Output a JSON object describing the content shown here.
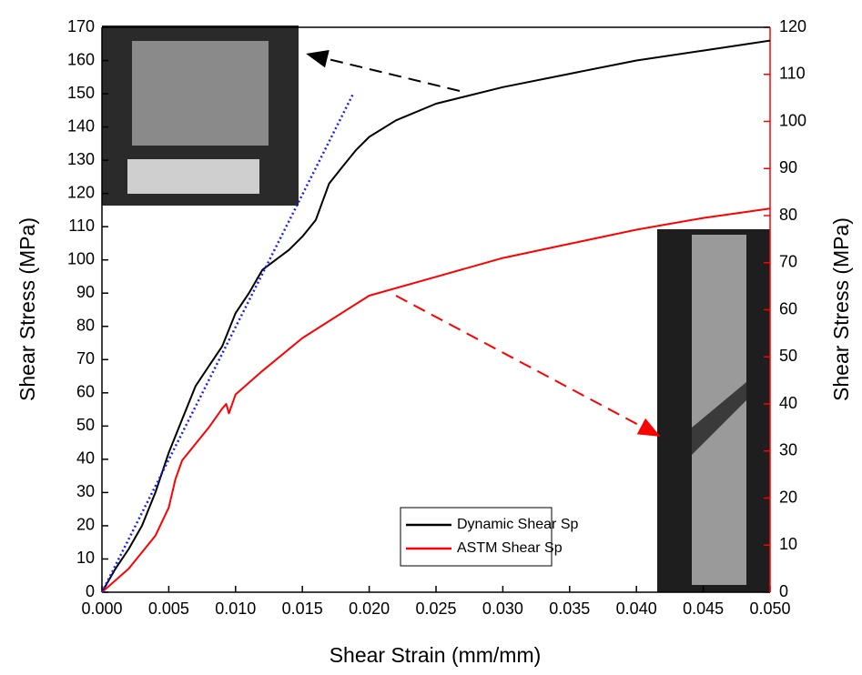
{
  "chart_data": {
    "type": "line",
    "x_label": "Shear Strain (mm/mm)",
    "y_label": "Shear Stress (MPa)",
    "y2_label": "Shear Stress (MPa)",
    "xlim": [
      0,
      0.05
    ],
    "xticks": [
      {
        "value": 0,
        "label": "0.000"
      },
      {
        "value": 0.005,
        "label": "0.005"
      },
      {
        "value": 0.01,
        "label": "0.010"
      },
      {
        "value": 0.015,
        "label": "0.015"
      },
      {
        "value": 0.02,
        "label": "0.020"
      },
      {
        "value": 0.025,
        "label": "0.025"
      },
      {
        "value": 0.03,
        "label": "0.030"
      },
      {
        "value": 0.035,
        "label": "0.035"
      },
      {
        "value": 0.04,
        "label": "0.040"
      },
      {
        "value": 0.045,
        "label": "0.045"
      },
      {
        "value": 0.05,
        "label": "0.050"
      }
    ],
    "ylim": [
      0,
      170
    ],
    "yticks": [
      0,
      10,
      20,
      30,
      40,
      50,
      60,
      70,
      80,
      90,
      100,
      110,
      120,
      130,
      140,
      150,
      160,
      170
    ],
    "y2lim": [
      0,
      120
    ],
    "y2ticks": [
      0,
      10,
      20,
      30,
      40,
      50,
      60,
      70,
      80,
      90,
      100,
      110,
      120
    ],
    "y2_color": "#ff0000",
    "legend": "bottom-right",
    "series": [
      {
        "name": "Dynamic Shear Sp",
        "color": "#000000",
        "axis": "y",
        "x": [
          0,
          0.001,
          0.002,
          0.003,
          0.004,
          0.005,
          0.006,
          0.007,
          0.008,
          0.009,
          0.01,
          0.011,
          0.012,
          0.013,
          0.014,
          0.015,
          0.016,
          0.017,
          0.018,
          0.019,
          0.02,
          0.022,
          0.025,
          0.03,
          0.035,
          0.04,
          0.045,
          0.05
        ],
        "values": [
          0,
          7,
          13,
          20,
          30,
          42,
          52,
          62,
          68,
          74,
          84,
          90,
          97,
          100,
          103,
          107,
          112,
          123,
          128,
          133,
          137,
          142,
          147,
          152,
          156,
          160,
          163,
          166
        ]
      },
      {
        "name": "ASTM Shear Sp",
        "color": "#ff0000",
        "axis": "y2",
        "x": [
          0,
          0.002,
          0.004,
          0.005,
          0.0055,
          0.006,
          0.008,
          0.009,
          0.0093,
          0.0095,
          0.01,
          0.012,
          0.015,
          0.02,
          0.025,
          0.03,
          0.035,
          0.04,
          0.045,
          0.05
        ],
        "values": [
          0,
          5,
          12,
          18,
          24,
          28,
          35,
          39,
          40,
          38,
          42,
          47,
          54,
          63,
          67,
          71,
          74,
          77,
          79.5,
          81.5
        ]
      },
      {
        "color": "#1a1aff",
        "axis": "y",
        "style": "dotted",
        "x": [
          0,
          0.0188
        ],
        "values": [
          0,
          150
        ]
      }
    ]
  }
}
